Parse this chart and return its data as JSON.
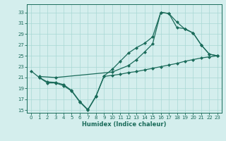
{
  "line1_x": [
    0,
    1,
    2,
    3,
    4,
    5,
    6,
    7,
    8,
    9,
    10,
    11,
    12,
    13,
    14,
    15,
    16,
    17,
    18,
    19,
    20,
    21,
    22,
    23
  ],
  "line1_y": [
    22.2,
    21.0,
    20.0,
    20.0,
    19.5,
    18.5,
    16.5,
    15.0,
    17.5,
    21.2,
    21.4,
    21.6,
    21.9,
    22.1,
    22.4,
    22.7,
    23.0,
    23.3,
    23.6,
    24.0,
    24.3,
    24.6,
    24.8,
    25.0
  ],
  "line2_x": [
    1,
    2,
    3,
    4,
    5,
    6,
    7,
    8,
    9,
    10,
    11,
    12,
    13,
    14,
    15,
    16,
    17,
    18,
    19,
    20,
    21,
    22,
    23
  ],
  "line2_y": [
    21.0,
    20.2,
    20.1,
    19.7,
    18.6,
    16.6,
    15.1,
    17.6,
    21.3,
    22.5,
    24.0,
    25.5,
    26.5,
    27.3,
    28.5,
    33.0,
    32.8,
    31.2,
    29.9,
    29.2,
    27.0,
    25.3,
    25.0
  ],
  "line3_x": [
    1,
    3,
    10,
    12,
    13,
    14,
    15,
    16,
    17,
    18,
    19,
    20,
    21,
    22,
    23
  ],
  "line3_y": [
    21.2,
    21.0,
    22.0,
    23.2,
    24.3,
    25.7,
    27.2,
    33.0,
    32.8,
    30.2,
    30.0,
    29.2,
    27.0,
    25.3,
    25.0
  ],
  "color": "#1a6b5a",
  "bg_color": "#d4eeed",
  "grid_color": "#a8d8d4",
  "xlabel": "Humidex (Indice chaleur)",
  "xlim": [
    -0.5,
    23.5
  ],
  "ylim": [
    14.5,
    34.5
  ],
  "yticks": [
    15,
    17,
    19,
    21,
    23,
    25,
    27,
    29,
    31,
    33
  ],
  "xticks": [
    0,
    1,
    2,
    3,
    4,
    5,
    6,
    7,
    8,
    9,
    10,
    11,
    12,
    13,
    14,
    15,
    16,
    17,
    18,
    19,
    20,
    21,
    22,
    23
  ],
  "marker": "D",
  "markersize": 2.0,
  "linewidth": 0.9,
  "tick_fontsize": 5.0,
  "xlabel_fontsize": 6.0
}
